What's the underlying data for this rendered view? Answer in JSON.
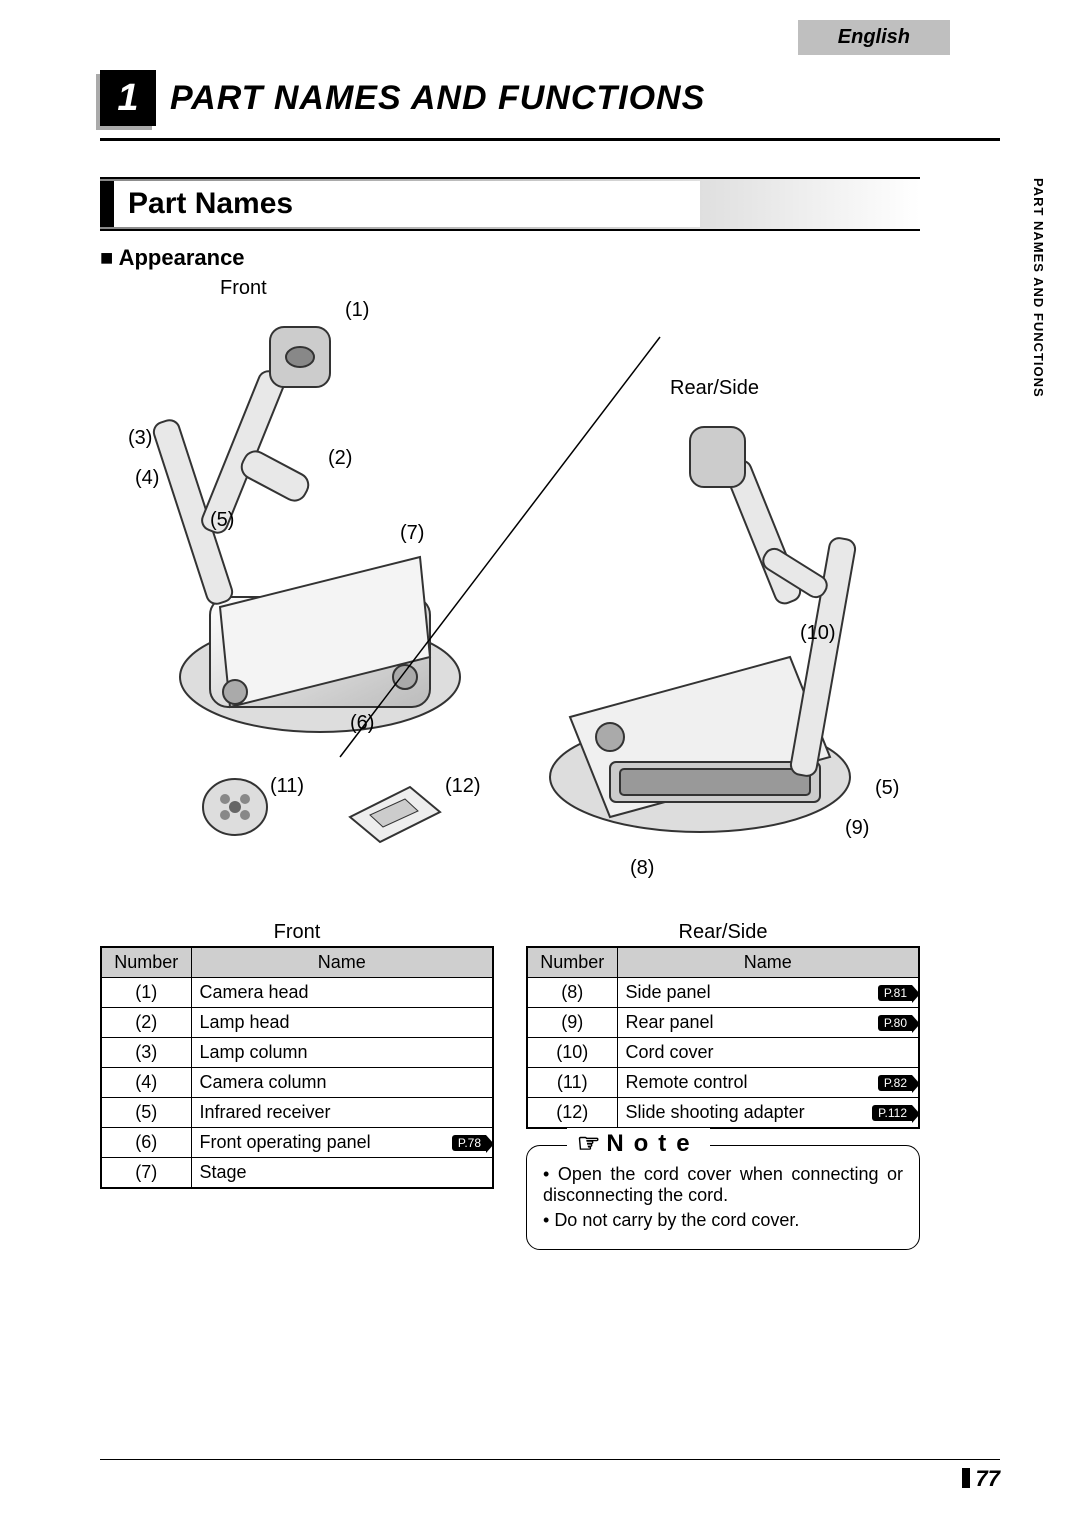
{
  "language_tab": "English",
  "chapter": {
    "number": "1",
    "title": "PART NAMES AND FUNCTIONS"
  },
  "side_tab": "PART NAMES\nAND\nFUNCTIONS",
  "section_title": "Part Names",
  "sub_heading": "Appearance",
  "illustration": {
    "front_label": "Front",
    "rear_label": "Rear/Side",
    "callouts": {
      "1": "(1)",
      "2": "(2)",
      "3": "(3)",
      "4": "(4)",
      "5": "(5)",
      "6": "(6)",
      "7": "(7)",
      "8": "(8)",
      "9": "(9)",
      "10": "(10)",
      "11": "(11)",
      "12": "(12)",
      "5b": "(5)"
    }
  },
  "tables": {
    "front": {
      "caption": "Front",
      "headers": [
        "Number",
        "Name"
      ],
      "rows": [
        {
          "num": "(1)",
          "name": "Camera head"
        },
        {
          "num": "(2)",
          "name": "Lamp head"
        },
        {
          "num": "(3)",
          "name": "Lamp column"
        },
        {
          "num": "(4)",
          "name": "Camera column"
        },
        {
          "num": "(5)",
          "name": "Infrared receiver"
        },
        {
          "num": "(6)",
          "name": "Front operating panel",
          "pref": "P.78"
        },
        {
          "num": "(7)",
          "name": "Stage"
        }
      ]
    },
    "rear": {
      "caption": "Rear/Side",
      "headers": [
        "Number",
        "Name"
      ],
      "rows": [
        {
          "num": "(8)",
          "name": "Side panel",
          "pref": "P.81"
        },
        {
          "num": "(9)",
          "name": "Rear panel",
          "pref": "P.80"
        },
        {
          "num": "(10)",
          "name": "Cord cover"
        },
        {
          "num": "(11)",
          "name": "Remote control",
          "pref": "P.82"
        },
        {
          "num": "(12)",
          "name": "Slide shooting adapter",
          "pref": "P.112"
        }
      ]
    }
  },
  "note": {
    "title": "Note",
    "items": [
      "Open the cord cover when connecting or disconnecting the cord.",
      "Do not carry by the cord cover."
    ]
  },
  "page_number": "77"
}
